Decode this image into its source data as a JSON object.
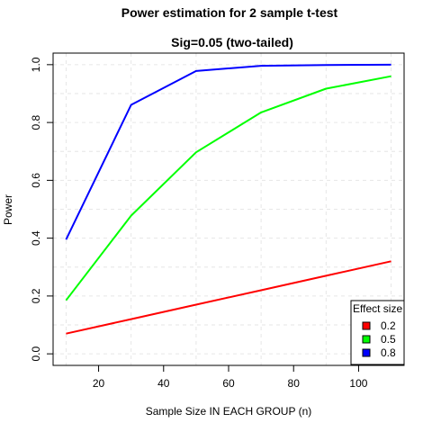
{
  "chart_data": {
    "type": "line",
    "title": "Power estimation for 2 sample t-test",
    "subtitle": "Sig=0.05 (two-tailed)",
    "xlabel": "Sample Size IN EACH GROUP (n)",
    "ylabel": "Power",
    "xlim": [
      6,
      114
    ],
    "ylim": [
      -0.04,
      1.04
    ],
    "xticks": [
      20,
      40,
      60,
      80,
      100
    ],
    "yticks": [
      0.0,
      0.2,
      0.4,
      0.6,
      0.8,
      1.0
    ],
    "ytick_labels": [
      "0.0",
      "0.2",
      "0.4",
      "0.6",
      "0.8",
      "1.0"
    ],
    "grid": true,
    "grid_x": [
      10,
      30,
      50,
      70,
      90,
      110
    ],
    "grid_y": [
      0.0,
      0.1,
      0.2,
      0.3,
      0.4,
      0.5,
      0.6,
      0.7,
      0.8,
      0.9,
      1.0
    ],
    "x": [
      10,
      30,
      50,
      70,
      90,
      110
    ],
    "legend": {
      "title": "Effect size",
      "position": "bottom-right"
    },
    "series": [
      {
        "name": "0.2",
        "color": "#ff0000",
        "values": [
          0.07,
          0.12,
          0.17,
          0.22,
          0.27,
          0.32
        ]
      },
      {
        "name": "0.5",
        "color": "#00ff00",
        "values": [
          0.185,
          0.478,
          0.697,
          0.835,
          0.917,
          0.96
        ]
      },
      {
        "name": "0.8",
        "color": "#0000ff",
        "values": [
          0.395,
          0.861,
          0.978,
          0.996,
          0.999,
          1.0
        ]
      }
    ]
  }
}
